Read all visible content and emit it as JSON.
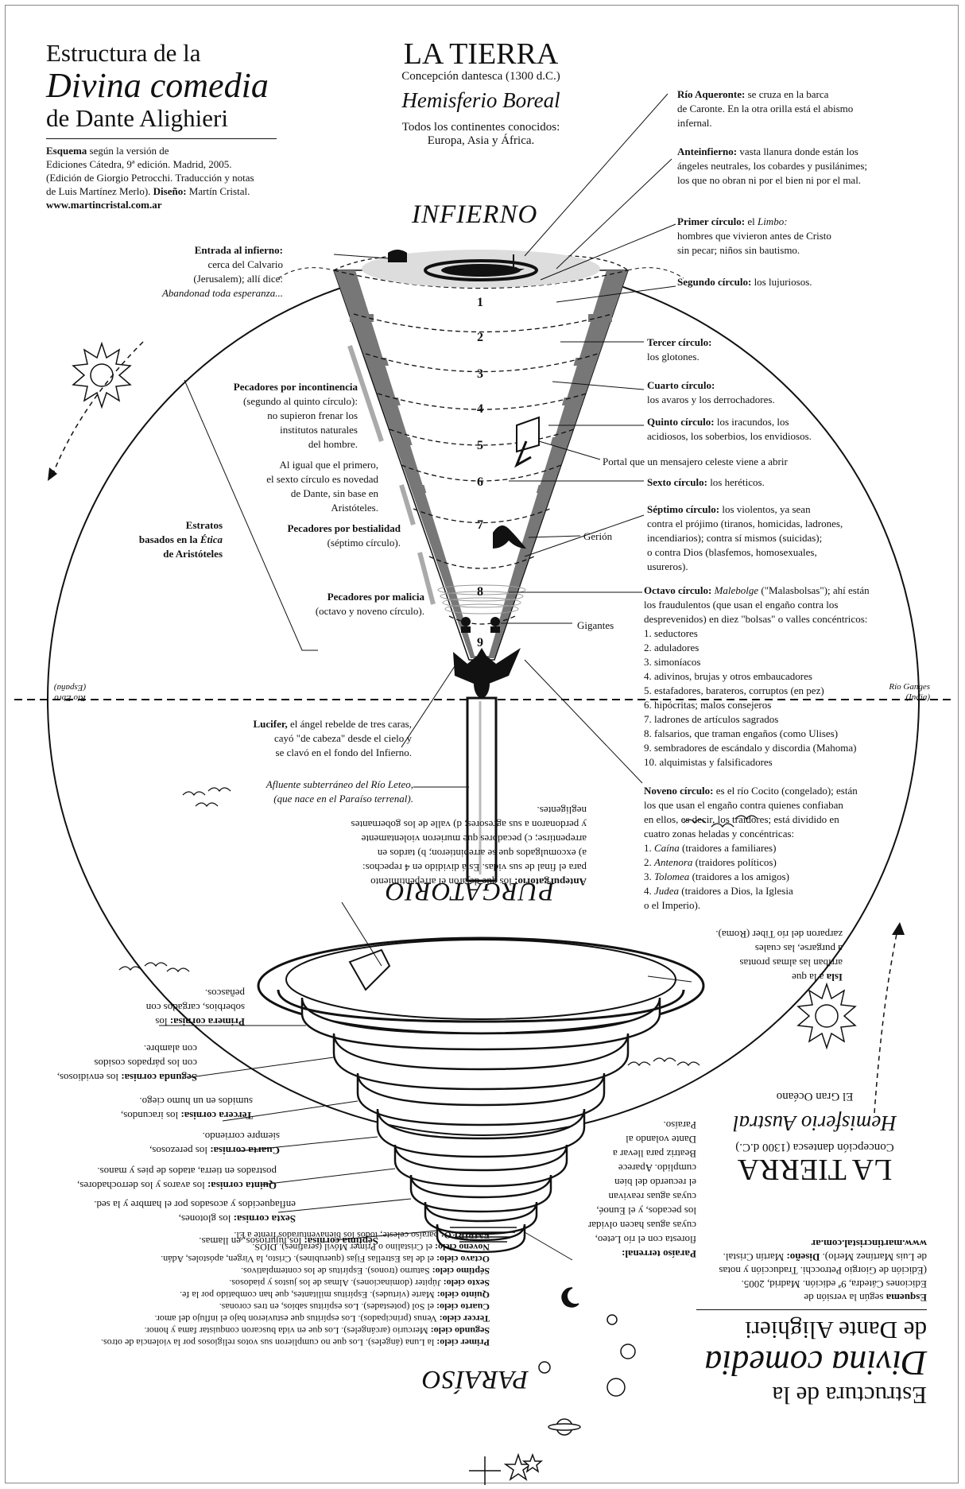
{
  "header": {
    "line1": "Estructura de la",
    "line2": "Divina comedia",
    "line3": "de Dante Alighieri",
    "credit_bold": "Esquema",
    "credit_1": " según la versión de",
    "credit_2": "Ediciones Cátedra, 9ª edición. Madrid, 2005.",
    "credit_3": "(Edición de Giorgio Petrocchi. Traducción y notas",
    "credit_4a": "de Luis Martínez Merlo). ",
    "credit_4b": "Diseño:",
    "credit_4c": " Martín Cristal.",
    "credit_5": "www.martincristal.com.ar"
  },
  "earth": {
    "title": "LA TIERRA",
    "subtitle": "Concepción dantesca (1300 d.C.)",
    "hemisphere": "Hemisferio Boreal",
    "continents_1": "Todos los continentes conocidos:",
    "continents_2": "Europa, Asia y África.",
    "south_title": "LA TIERRA",
    "south_subtitle": "Concepción dantesca (1300 d.C.)",
    "south_hemisphere": "Hemisferio Austral",
    "south_ocean": "El Gran Océano"
  },
  "sections": {
    "infierno": "INFIERNO",
    "purgatorio": "PURGATORIO",
    "paraiso": "PARAÍSO"
  },
  "circle_numbers": [
    "1",
    "2",
    "3",
    "4",
    "5",
    "6",
    "7",
    "8",
    "9"
  ],
  "hell_right": {
    "aqueronte_b": "Río Aqueronte:",
    "aqueronte_1": " se cruza en la barca",
    "aqueronte_2": "de Caronte. En la otra orilla está el abismo",
    "aqueronte_3": "infernal.",
    "anteinfierno_b": "Anteinfierno:",
    "anteinfierno_1": " vasta llanura donde están los",
    "anteinfierno_2": "ángeles neutrales, los cobardes y pusilánimes;",
    "anteinfierno_3": "los que no obran ni por el bien ni por el mal.",
    "c1_b": "Primer círculo:",
    "c1_1": " el ",
    "c1_it": "Limbo:",
    "c1_2": "hombres que vivieron antes de Cristo",
    "c1_3": "sin pecar; niños sin bautismo.",
    "c2_b": "Segundo círculo:",
    "c2_1": " los lujuriosos.",
    "c3_b": "Tercer círculo:",
    "c3_1": "los glotones.",
    "c4_b": "Cuarto círculo:",
    "c4_1": "los avaros y los derrochadores.",
    "c5_b": "Quinto círculo:",
    "c5_1": " los iracundos, los",
    "c5_2": "acidiosos, los soberbios, los envidiosos.",
    "portal": "Portal que un mensajero celeste viene a abrir",
    "c6_b": "Sexto círculo:",
    "c6_1": " los heréticos.",
    "c7_b": "Séptimo círculo:",
    "c7_1": " los violentos, ya sean",
    "c7_2": "contra el prójimo (tiranos, homicidas, ladrones,",
    "c7_3": "incendiarios); contra sí mismos (suicidas);",
    "c7_4": "o contra Dios (blasfemos, homosexuales,",
    "c7_5": "usureros).",
    "gerion": "Gerión",
    "c8_b": "Octavo círculo:",
    "c8_it": "Malebolge",
    "c8_1": " (\"Malasbolsas\"); ahí están",
    "c8_2": "los fraudulentos (que usan el engaño contra los",
    "c8_3": "desprevenidos) en diez \"bolsas\" o valles concéntricos:",
    "gigantes": "Gigantes",
    "bolsas": [
      "1. seductores",
      "2. aduladores",
      "3. simoníacos",
      "4. adivinos, brujas y otros embaucadores",
      "5. estafadores, barateros, corruptos (en pez)",
      "6. hipócritas; malos consejeros",
      "7. ladrones de artículos sagrados",
      "8. falsarios, que traman engaños (como Ulises)",
      "9. sembradores de escándalo y discordia (Mahoma)",
      "10. alquimistas y falsificadores"
    ],
    "c9_b": "Noveno círculo:",
    "c9_1": " es el río Cocito (congelado); están",
    "c9_2": "los que usan el engaño contra quienes confiaban",
    "c9_3": "en ellos, es decir, los traidores; está dividido en",
    "c9_4": "cuatro zonas heladas y concéntricas:",
    "zonas": [
      {
        "n": "1. ",
        "it": "Caína",
        "t": " (traidores a familiares)"
      },
      {
        "n": "2. ",
        "it": "Antenora",
        "t": " (traidores políticos)"
      },
      {
        "n": "3. ",
        "it": "Tolomea",
        "t": " (traidores a los amigos)"
      },
      {
        "n": "4. ",
        "it": "Judea",
        "t": " (traidores a Dios, la Iglesia"
      }
    ],
    "c9_end": "o el Imperio)."
  },
  "hell_left": {
    "entrada_b": "Entrada al infierno:",
    "entrada_1": "cerca del Calvario",
    "entrada_2": "(Jerusalem); allí dice:",
    "entrada_it": "Abandonad toda esperanza...",
    "incont_b": "Pecadores por incontinencia",
    "incont_1": "(segundo al quinto círculo):",
    "incont_2": "no supieron frenar los",
    "incont_3": "institutos naturales",
    "incont_4": "del hombre.",
    "sexto_1": "Al igual que el primero,",
    "sexto_2": "el sexto círculo es novedad",
    "sexto_3": "de Dante, sin base en",
    "sexto_4": "Aristóteles.",
    "bestial_b": "Pecadores por bestialidad",
    "bestial_1": "(séptimo círculo).",
    "estratos_b1": "Estratos",
    "estratos_b2": "basados en la ",
    "estratos_it": "Ética",
    "estratos_b3": "de Aristóteles",
    "malicia_b": "Pecadores por malicia",
    "malicia_1": "(octavo y noveno círculo).",
    "lucifer_b": "Lucifer,",
    "lucifer_1": " el ángel rebelde de tres caras,",
    "lucifer_2": "cayó \"de cabeza\" desde el cielo y",
    "lucifer_3": "se clavó en el fondo del Infierno.",
    "leteo_1": "Afluente subterráneo del Río Leteo,",
    "leteo_2": "(que nace en el Paraíso terrenal).",
    "ebro": "Río Ebro",
    "ebro_2": "(España)",
    "ganges": "Río Ganges",
    "ganges_2": "(India)"
  },
  "purgatory_left": {
    "ante_b": "Antepurgatorio:",
    "ante_1": " los que dejaron el arrepentimiento",
    "ante_2": "para el final de sus vidas. Está dividido en 4 repechos:",
    "ante_3": "a) excomulgados que se arrepintieron; b) tardos en",
    "ante_4": "arrepentirse; c) pecadores que murieron violentamente",
    "ante_5": "y perdonaron a sus agresores; d) valle de los gobernantes",
    "ante_6": "negligentes.",
    "p1_b": "Primera cornisa:",
    "p1_1": " los",
    "p1_2": "soberbios, cargados con",
    "p1_3": "peñascos.",
    "p2_b": "Segunda cornisa:",
    "p2_1": " los envidiosos,",
    "p2_2": "con los párpados cosidos",
    "p2_3": "con alambre.",
    "p3_b": "Tercera cornisa:",
    "p3_1": " los iracundos,",
    "p3_2": "sumidos en un humo ciego.",
    "p4_b": "Cuarta cornisa:",
    "p4_1": " los perezosos,",
    "p4_2": "siempre corriendo.",
    "p5_b": "Quinta cornisa:",
    "p5_1": " los avaros y los derrochadores,",
    "p5_2": "postrados en tierra, atados de pies y manos.",
    "p6_b": "Sexta cornisa:",
    "p6_1": " los glotones,",
    "p6_2": "enflaquecidos y acosados por el hambre y la sed.",
    "p7_b": "Séptima cornisa:",
    "p7_1": " los lujuriosos, en llamas."
  },
  "purgatory_right": {
    "isla_b": "Isla",
    "isla_1": " a la que",
    "isla_2": "arriban las almas prontas",
    "isla_3": "a purgarse, las cuales",
    "isla_4": "zarparon del río Tíber (Roma).",
    "terrenal_b": "Paraíso terrenal:",
    "terrenal_1": "floresta con el río Leteo,",
    "terrenal_2": "cuyas aguas hacen olvidar",
    "terrenal_3": "los pecados, y el Eunoé,",
    "terrenal_4": "cuyas aguas reavivan",
    "terrenal_5": "el recuerdo del bien",
    "terrenal_6": "cumplido. Aparece",
    "terrenal_7": "Beatriz para llevar a",
    "terrenal_8": "Dante volando al",
    "terrenal_9": "Paraíso."
  },
  "paradise": [
    {
      "b": "Primer cielo:",
      "t": " la Luna (ángeles). Los que no cumplieron sus votos religiosos por la violencia de otros."
    },
    {
      "b": "Segundo cielo:",
      "t": " Mercurio (arcángeles). Los que en vida buscaron conquistar fama y honor."
    },
    {
      "b": "Tercer cielo:",
      "t": " Venus (principados). Los espíritus que estuvieron bajo el influjo del amor."
    },
    {
      "b": "Cuarto cielo:",
      "t": " el Sol (potestades). Los espíritus sabios, en tres coronas."
    },
    {
      "b": "Quinto cielo:",
      "t": " Marte (virtudes). Espíritus militantes, que han combatido por la fe."
    },
    {
      "b": "Sexto cielo:",
      "t": " Júpiter (dominaciones). Almas de los justos y piadosos."
    },
    {
      "b": "Séptimo cielo:",
      "t": " Saturno (tronos). Espíritus de los contemplativos."
    },
    {
      "b": "Octavo cielo:",
      "t": " el de las Estrellas Fijas (querubines). Cristo, la Virgen, apóstoles, Adán."
    },
    {
      "b": "Noveno cielo:",
      "t": " el Cristalino o Primer Móvil (serafines). DIOS."
    },
    {
      "b": "EMPÍREO:",
      "t": " paraíso celeste; todos los bienaventurados frente a Él."
    }
  ]
}
